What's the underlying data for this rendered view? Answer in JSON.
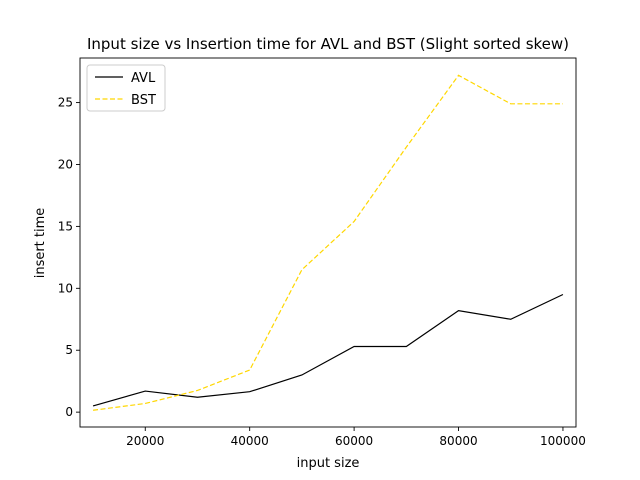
{
  "chart_data": {
    "type": "line",
    "title": "Input size vs Insertion time for AVL and BST (Slight sorted skew)",
    "xlabel": "input size",
    "ylabel": "insert time",
    "x": [
      10000,
      20000,
      30000,
      40000,
      50000,
      60000,
      70000,
      80000,
      90000,
      100000
    ],
    "xlim": [
      7500,
      102500
    ],
    "ylim": [
      -1.2,
      28.6
    ],
    "xticks": [
      20000,
      40000,
      60000,
      80000,
      100000
    ],
    "yticks": [
      0,
      5,
      10,
      15,
      20,
      25
    ],
    "grid": false,
    "legend_position": "top-left",
    "series": [
      {
        "name": "AVL",
        "color": "#000000",
        "dash": "solid",
        "values": [
          0.5,
          1.7,
          1.2,
          1.65,
          3.0,
          5.3,
          5.3,
          8.2,
          7.5,
          9.5
        ]
      },
      {
        "name": "BST",
        "color": "#ffd700",
        "dash": "dashed",
        "values": [
          0.15,
          0.7,
          1.75,
          3.4,
          11.5,
          15.4,
          21.4,
          27.2,
          24.9,
          24.9
        ]
      }
    ]
  }
}
